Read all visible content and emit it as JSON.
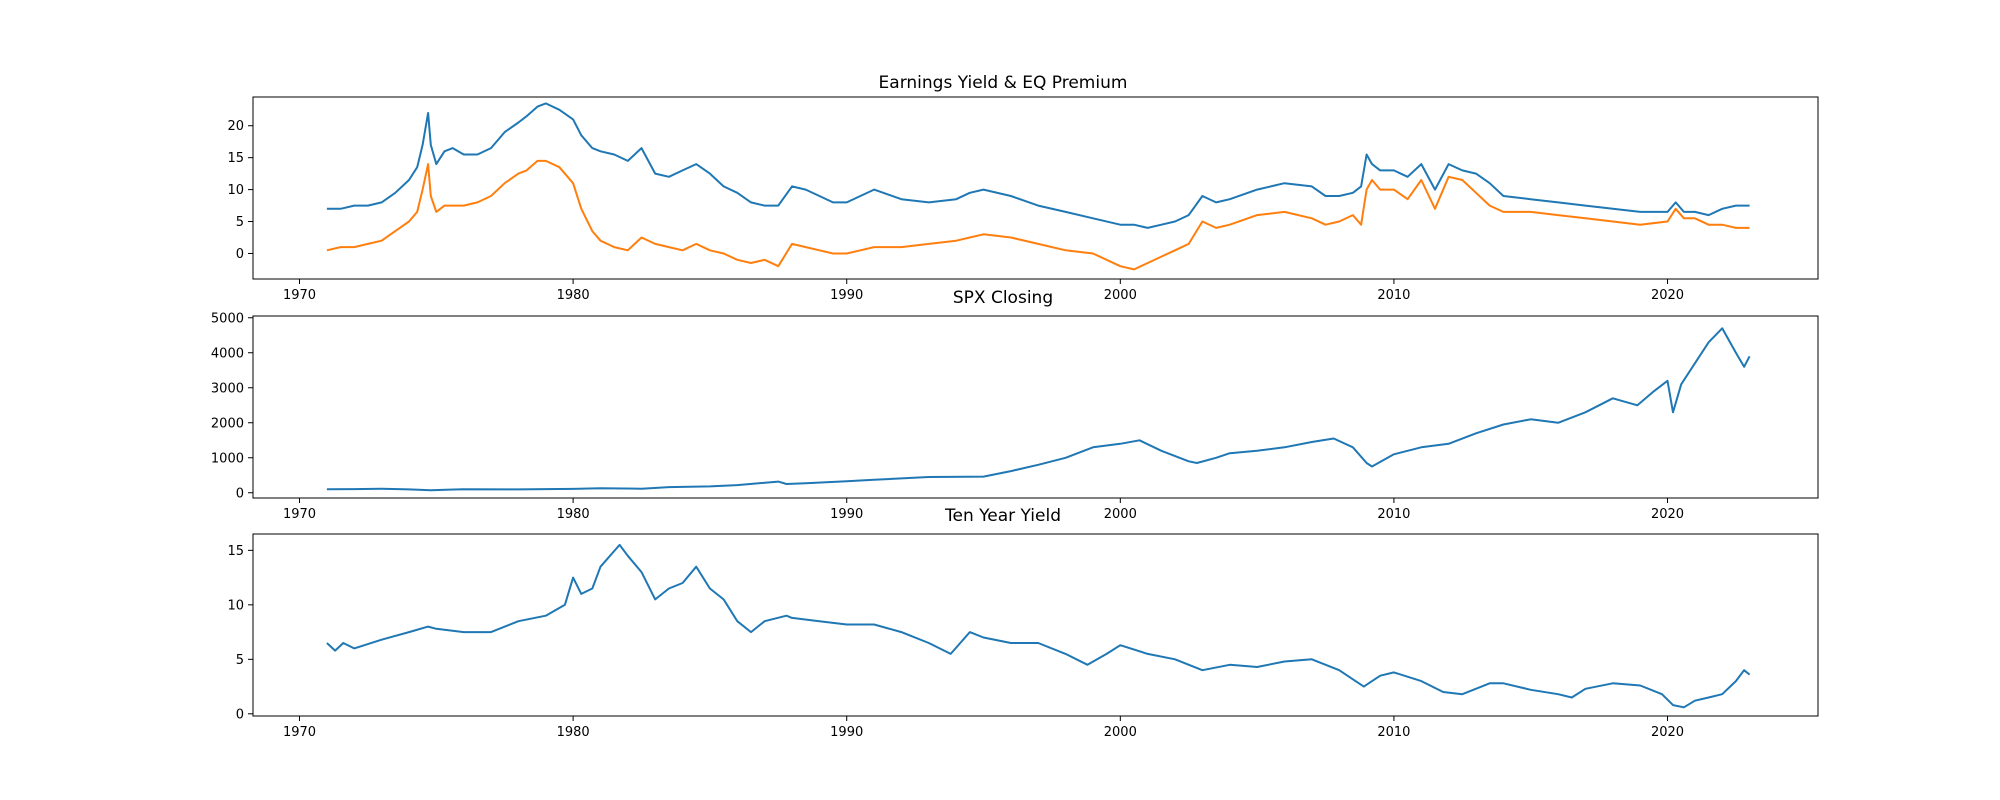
{
  "colors": {
    "series_blue": "#1f77b4",
    "series_orange": "#ff7f0e",
    "axes": "#000000",
    "background": "#ffffff"
  },
  "chart_data": [
    {
      "type": "line",
      "title": "Earnings Yield & EQ Premium",
      "xlabel": "",
      "ylabel": "",
      "xlim": [
        1968.3,
        2025.5
      ],
      "ylim": [
        -4,
        24.5
      ],
      "xticks": [
        1970,
        1980,
        1990,
        2000,
        2010,
        2020
      ],
      "yticks": [
        0,
        5,
        10,
        15,
        20
      ],
      "grid": false,
      "legend": "none",
      "series": [
        {
          "color": "#1f77b4",
          "x": [
            1971.0,
            1971.5,
            1972.0,
            1972.5,
            1973.0,
            1973.5,
            1974.0,
            1974.3,
            1974.5,
            1974.7,
            1974.8,
            1975.0,
            1975.3,
            1975.6,
            1976.0,
            1976.5,
            1977.0,
            1977.5,
            1978.0,
            1978.3,
            1978.7,
            1979.0,
            1979.5,
            1980.0,
            1980.3,
            1980.7,
            1981.0,
            1981.5,
            1982.0,
            1982.5,
            1983.0,
            1983.5,
            1984.0,
            1984.5,
            1985.0,
            1985.5,
            1986.0,
            1986.5,
            1987.0,
            1987.5,
            1988.0,
            1988.5,
            1989.0,
            1989.5,
            1990.0,
            1990.5,
            1991.0,
            1992.0,
            1993.0,
            1994.0,
            1994.5,
            1995.0,
            1996.0,
            1997.0,
            1998.0,
            1999.0,
            2000.0,
            2000.5,
            2001.0,
            2001.5,
            2002.0,
            2002.5,
            2003.0,
            2003.5,
            2004.0,
            2005.0,
            2006.0,
            2007.0,
            2007.5,
            2008.0,
            2008.5,
            2008.8,
            2009.0,
            2009.2,
            2009.5,
            2010.0,
            2010.5,
            2011.0,
            2011.5,
            2012.0,
            2012.5,
            2013.0,
            2013.5,
            2014.0,
            2015.0,
            2016.0,
            2017.0,
            2018.0,
            2019.0,
            2020.0,
            2020.3,
            2020.6,
            2021.0,
            2021.5,
            2022.0,
            2022.5,
            2023.0
          ],
          "values": [
            7.0,
            7.0,
            7.5,
            7.5,
            8.0,
            9.5,
            11.5,
            13.5,
            17.0,
            22.0,
            17.0,
            14.0,
            16.0,
            16.5,
            15.5,
            15.5,
            16.5,
            19.0,
            20.5,
            21.5,
            23.0,
            23.5,
            22.5,
            21.0,
            18.5,
            16.5,
            16.0,
            15.5,
            14.5,
            16.5,
            12.5,
            12.0,
            13.0,
            14.0,
            12.5,
            10.5,
            9.5,
            8.0,
            7.5,
            7.5,
            10.5,
            10.0,
            9.0,
            8.0,
            8.0,
            9.0,
            10.0,
            8.5,
            8.0,
            8.5,
            9.5,
            10.0,
            9.0,
            7.5,
            6.5,
            5.5,
            4.5,
            4.5,
            4.0,
            4.5,
            5.0,
            6.0,
            9.0,
            8.0,
            8.5,
            10.0,
            11.0,
            10.5,
            9.0,
            9.0,
            9.5,
            10.5,
            15.5,
            14.0,
            13.0,
            13.0,
            12.0,
            14.0,
            10.0,
            14.0,
            13.0,
            12.5,
            11.0,
            9.0,
            8.5,
            8.0,
            7.5,
            7.0,
            6.5,
            6.5,
            8.0,
            6.5,
            6.5,
            6.0,
            7.0,
            7.5,
            7.5
          ]
        },
        {
          "color": "#ff7f0e",
          "x": [
            1971.0,
            1971.5,
            1972.0,
            1972.5,
            1973.0,
            1973.5,
            1974.0,
            1974.3,
            1974.5,
            1974.7,
            1974.8,
            1975.0,
            1975.3,
            1975.6,
            1976.0,
            1976.5,
            1977.0,
            1977.5,
            1978.0,
            1978.3,
            1978.7,
            1979.0,
            1979.5,
            1980.0,
            1980.3,
            1980.7,
            1981.0,
            1981.5,
            1982.0,
            1982.5,
            1983.0,
            1983.5,
            1984.0,
            1984.5,
            1985.0,
            1985.5,
            1986.0,
            1986.5,
            1987.0,
            1987.5,
            1988.0,
            1988.5,
            1989.0,
            1989.5,
            1990.0,
            1990.5,
            1991.0,
            1992.0,
            1993.0,
            1994.0,
            1994.5,
            1995.0,
            1996.0,
            1997.0,
            1998.0,
            1999.0,
            2000.0,
            2000.5,
            2001.0,
            2001.5,
            2002.0,
            2002.5,
            2003.0,
            2003.5,
            2004.0,
            2005.0,
            2006.0,
            2007.0,
            2007.5,
            2008.0,
            2008.5,
            2008.8,
            2009.0,
            2009.2,
            2009.5,
            2010.0,
            2010.5,
            2011.0,
            2011.5,
            2012.0,
            2012.5,
            2013.0,
            2013.5,
            2014.0,
            2015.0,
            2016.0,
            2017.0,
            2018.0,
            2019.0,
            2020.0,
            2020.3,
            2020.6,
            2021.0,
            2021.5,
            2022.0,
            2022.5,
            2023.0
          ],
          "values": [
            0.5,
            1.0,
            1.0,
            1.5,
            2.0,
            3.5,
            5.0,
            6.5,
            10.0,
            14.0,
            9.0,
            6.5,
            7.5,
            7.5,
            7.5,
            8.0,
            9.0,
            11.0,
            12.5,
            13.0,
            14.5,
            14.5,
            13.5,
            11.0,
            7.0,
            3.5,
            2.0,
            1.0,
            0.5,
            2.5,
            1.5,
            1.0,
            0.5,
            1.5,
            0.5,
            0.0,
            -1.0,
            -1.5,
            -1.0,
            -2.0,
            1.5,
            1.0,
            0.5,
            0.0,
            0.0,
            0.5,
            1.0,
            1.0,
            1.5,
            2.0,
            2.5,
            3.0,
            2.5,
            1.5,
            0.5,
            0.0,
            -2.0,
            -2.5,
            -1.5,
            -0.5,
            0.5,
            1.5,
            5.0,
            4.0,
            4.5,
            6.0,
            6.5,
            5.5,
            4.5,
            5.0,
            6.0,
            4.5,
            10.0,
            11.5,
            10.0,
            10.0,
            8.5,
            11.5,
            7.0,
            12.0,
            11.5,
            9.5,
            7.5,
            6.5,
            6.5,
            6.0,
            5.5,
            5.0,
            4.5,
            5.0,
            7.0,
            5.5,
            5.5,
            4.5,
            4.5,
            4.0,
            4.0
          ]
        }
      ]
    },
    {
      "type": "line",
      "title": "SPX Closing",
      "xlabel": "",
      "ylabel": "",
      "xlim": [
        1968.3,
        2025.5
      ],
      "ylim": [
        -150,
        5050
      ],
      "xticks": [
        1970,
        1980,
        1990,
        2000,
        2010,
        2020
      ],
      "yticks": [
        0,
        1000,
        2000,
        3000,
        4000,
        5000
      ],
      "grid": false,
      "legend": "none",
      "series": [
        {
          "color": "#1f77b4",
          "x": [
            1971.0,
            1972.0,
            1973.0,
            1974.0,
            1974.8,
            1975.5,
            1976.0,
            1978.0,
            1980.0,
            1981.0,
            1982.5,
            1983.5,
            1985.0,
            1986.0,
            1987.5,
            1987.8,
            1988.5,
            1990.0,
            1991.0,
            1993.0,
            1995.0,
            1996.0,
            1997.0,
            1998.0,
            1999.0,
            2000.0,
            2000.7,
            2001.5,
            2002.5,
            2002.8,
            2003.5,
            2004.0,
            2005.0,
            2006.0,
            2007.0,
            2007.8,
            2008.5,
            2009.0,
            2009.2,
            2010.0,
            2011.0,
            2012.0,
            2013.0,
            2014.0,
            2015.0,
            2016.0,
            2017.0,
            2018.0,
            2018.9,
            2019.5,
            2020.0,
            2020.2,
            2020.5,
            2021.0,
            2021.5,
            2022.0,
            2022.5,
            2022.8,
            2023.0
          ],
          "values": [
            100,
            105,
            115,
            95,
            70,
            90,
            100,
            95,
            110,
            130,
            115,
            160,
            180,
            220,
            320,
            250,
            270,
            330,
            370,
            450,
            460,
            620,
            800,
            1000,
            1300,
            1400,
            1500,
            1200,
            900,
            850,
            1000,
            1130,
            1200,
            1300,
            1450,
            1550,
            1300,
            850,
            750,
            1100,
            1300,
            1400,
            1700,
            1950,
            2100,
            2000,
            2300,
            2700,
            2500,
            2900,
            3200,
            2300,
            3100,
            3700,
            4300,
            4700,
            4000,
            3600,
            3900
          ]
        }
      ]
    },
    {
      "type": "line",
      "title": "Ten Year Yield",
      "xlabel": "",
      "ylabel": "",
      "xlim": [
        1968.3,
        2025.5
      ],
      "ylim": [
        -0.2,
        16.5
      ],
      "xticks": [
        1970,
        1980,
        1990,
        2000,
        2010,
        2020
      ],
      "yticks": [
        0,
        5,
        10,
        15
      ],
      "grid": false,
      "legend": "none",
      "series": [
        {
          "color": "#1f77b4",
          "x": [
            1971.0,
            1971.3,
            1971.6,
            1972.0,
            1973.0,
            1974.0,
            1974.7,
            1975.0,
            1976.0,
            1977.0,
            1978.0,
            1979.0,
            1979.7,
            1980.0,
            1980.3,
            1980.7,
            1981.0,
            1981.7,
            1982.0,
            1982.5,
            1983.0,
            1983.5,
            1984.0,
            1984.5,
            1985.0,
            1985.5,
            1986.0,
            1986.5,
            1987.0,
            1987.8,
            1988.0,
            1989.0,
            1990.0,
            1991.0,
            1992.0,
            1993.0,
            1993.8,
            1994.5,
            1995.0,
            1996.0,
            1997.0,
            1998.0,
            1998.8,
            1999.5,
            2000.0,
            2001.0,
            2002.0,
            2003.0,
            2004.0,
            2005.0,
            2006.0,
            2007.0,
            2008.0,
            2008.9,
            2009.5,
            2010.0,
            2011.0,
            2011.8,
            2012.5,
            2013.5,
            2014.0,
            2015.0,
            2016.0,
            2016.5,
            2017.0,
            2018.0,
            2019.0,
            2019.8,
            2020.2,
            2020.6,
            2021.0,
            2021.5,
            2022.0,
            2022.5,
            2022.8,
            2023.0
          ],
          "values": [
            6.5,
            5.8,
            6.5,
            6.0,
            6.8,
            7.5,
            8.0,
            7.8,
            7.5,
            7.5,
            8.5,
            9.0,
            10.0,
            12.5,
            11.0,
            11.5,
            13.5,
            15.5,
            14.5,
            13.0,
            10.5,
            11.5,
            12.0,
            13.5,
            11.5,
            10.5,
            8.5,
            7.5,
            8.5,
            9.0,
            8.8,
            8.5,
            8.2,
            8.2,
            7.5,
            6.5,
            5.5,
            7.5,
            7.0,
            6.5,
            6.5,
            5.5,
            4.5,
            5.5,
            6.3,
            5.5,
            5.0,
            4.0,
            4.5,
            4.3,
            4.8,
            5.0,
            4.0,
            2.5,
            3.5,
            3.8,
            3.0,
            2.0,
            1.8,
            2.8,
            2.8,
            2.2,
            1.8,
            1.5,
            2.3,
            2.8,
            2.6,
            1.8,
            0.8,
            0.6,
            1.2,
            1.5,
            1.8,
            3.0,
            4.0,
            3.6
          ]
        }
      ]
    }
  ]
}
